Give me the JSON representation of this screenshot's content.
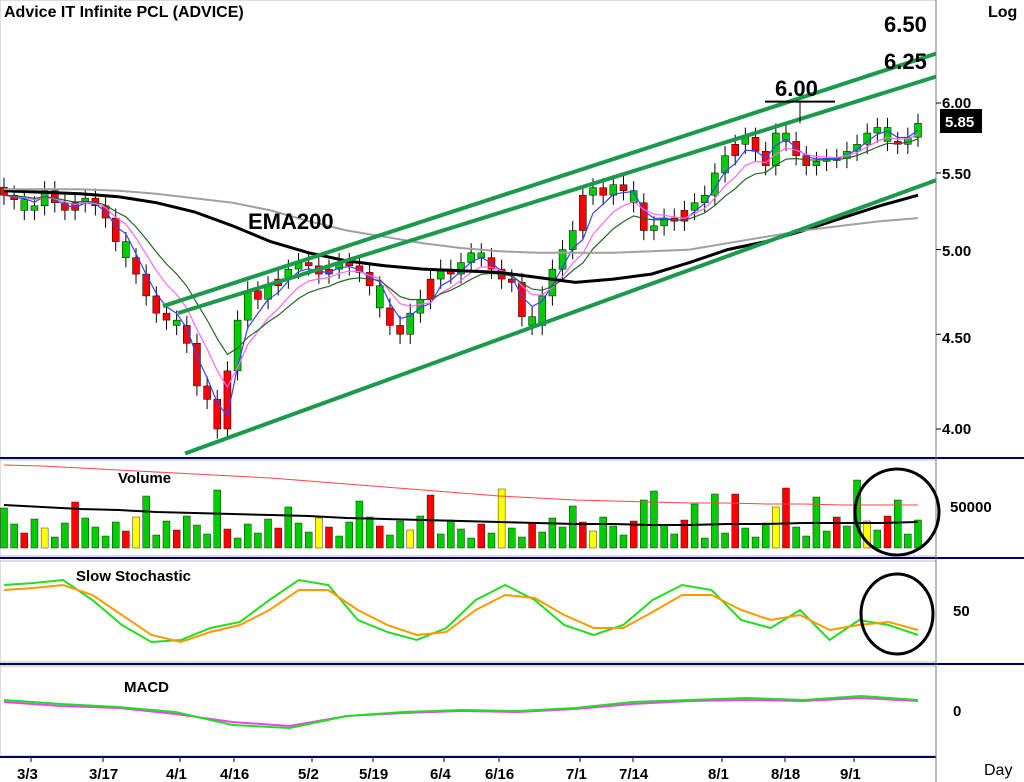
{
  "header": {
    "title": "Advice  IT  Infinite  PCL  (ADVICE)",
    "scale_label": "Log",
    "x_unit_label": "Day"
  },
  "annotations": {
    "ema_label": "EMA200",
    "level_600": "6.00",
    "level_625": "6.25",
    "level_650": "6.50",
    "last_price": "5.85"
  },
  "panels": {
    "volume_title": "Volume",
    "stoch_title": "Slow  Stochastic",
    "macd_title": "MACD",
    "volume_tick": "50000",
    "stoch_tick": "50",
    "macd_tick": "0"
  },
  "chart_data": {
    "type": "candlestick",
    "scale": "log",
    "y_ticks": [
      "6.00",
      "5.50",
      "5.00",
      "4.50",
      "4.00"
    ],
    "x_ticks": [
      "3/3",
      "3/17",
      "4/1",
      "4/16",
      "5/2",
      "5/19",
      "6/4",
      "6/16",
      "7/1",
      "7/14",
      "8/1",
      "8/18",
      "9/1"
    ],
    "price_path": [
      5.35,
      5.32,
      5.25,
      5.28,
      5.38,
      5.3,
      5.25,
      5.3,
      5.33,
      5.28,
      5.2,
      5.05,
      4.95,
      4.85,
      4.72,
      4.62,
      4.58,
      4.55,
      4.45,
      4.22,
      4.15,
      4.0,
      4.3,
      4.58,
      4.75,
      4.7,
      4.78,
      4.82,
      4.88,
      4.92,
      4.9,
      4.85,
      4.88,
      4.92,
      4.9,
      4.86,
      4.78,
      4.65,
      4.55,
      4.5,
      4.62,
      4.7,
      4.82,
      4.88,
      4.85,
      4.92,
      4.98,
      4.95,
      4.88,
      4.82,
      4.8,
      4.6,
      4.55,
      4.72,
      4.88,
      5.0,
      5.12,
      5.35,
      5.4,
      5.35,
      5.42,
      5.38,
      5.3,
      5.12,
      5.15,
      5.2,
      5.18,
      5.25,
      5.3,
      5.35,
      5.5,
      5.62,
      5.7,
      5.75,
      5.65,
      5.55,
      5.78,
      5.72,
      5.62,
      5.55,
      5.58,
      5.6,
      5.6,
      5.65,
      5.7,
      5.78,
      5.82,
      5.72,
      5.7,
      5.75,
      5.85
    ],
    "colors": {
      "up": "#00cc00",
      "down": "#ff0000",
      "channel": "#1a9a4a",
      "ema200": "#000000",
      "sma": "#a0a0a0",
      "stoch_k": "#22dd22",
      "stoch_d": "#ff9900",
      "macd": "#22dd22",
      "signal": "#ee44ee",
      "volume_ma": "#000000",
      "volume_ma2": "#ff4444"
    }
  }
}
